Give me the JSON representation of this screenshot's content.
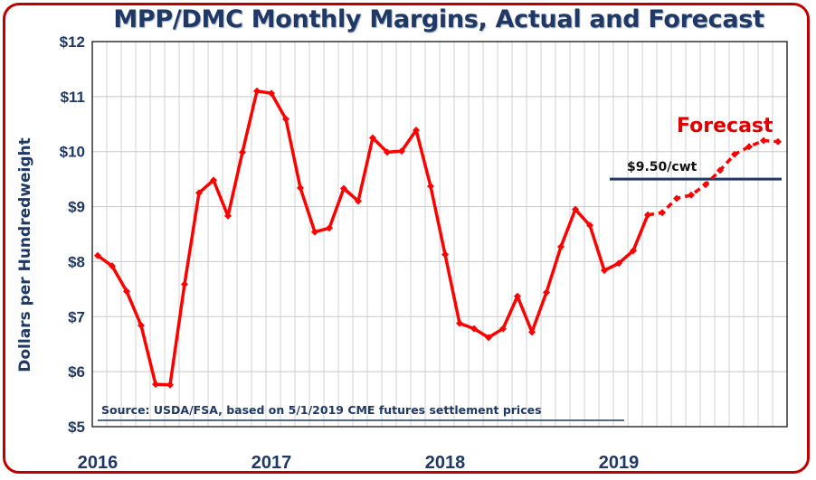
{
  "chart_data": {
    "type": "line",
    "title": "MPP/DMC Monthly Margins, Actual and Forecast",
    "ylabel": "Dollars per Hundredweight",
    "xlabel": "",
    "ylim": [
      5,
      12
    ],
    "y_ticks": [
      "$5",
      "$6",
      "$7",
      "$8",
      "$9",
      "$10",
      "$11",
      "$12"
    ],
    "x_tick_labels": [
      "2016",
      "2017",
      "2018",
      "2019"
    ],
    "grid": true,
    "x": [
      "2016-01",
      "2016-02",
      "2016-03",
      "2016-04",
      "2016-05",
      "2016-06",
      "2016-07",
      "2016-08",
      "2016-09",
      "2016-10",
      "2016-11",
      "2016-12",
      "2017-01",
      "2017-02",
      "2017-03",
      "2017-04",
      "2017-05",
      "2017-06",
      "2017-07",
      "2017-08",
      "2017-09",
      "2017-10",
      "2017-11",
      "2017-12",
      "2018-01",
      "2018-02",
      "2018-03",
      "2018-04",
      "2018-05",
      "2018-06",
      "2018-07",
      "2018-08",
      "2018-09",
      "2018-10",
      "2018-11",
      "2018-12",
      "2019-01",
      "2019-02",
      "2019-03",
      "2019-04",
      "2019-05",
      "2019-06",
      "2019-07",
      "2019-08",
      "2019-09",
      "2019-10",
      "2019-11",
      "2019-12"
    ],
    "series": [
      {
        "color": "#ff0000",
        "actual_values": [
          8.11,
          7.92,
          7.46,
          6.84,
          5.77,
          5.76,
          7.59,
          9.25,
          9.48,
          8.83,
          9.99,
          11.1,
          11.06,
          10.59,
          9.34,
          8.54,
          8.61,
          9.33,
          9.1,
          10.25,
          9.99,
          10.01,
          10.39,
          9.37,
          8.13,
          6.88,
          6.78,
          6.62,
          6.78,
          7.37,
          6.72,
          7.44,
          8.27,
          8.95,
          8.66,
          7.84,
          7.97,
          8.2,
          8.85
        ],
        "forecast_values": [
          8.85,
          8.89,
          9.15,
          9.21,
          9.4,
          9.66,
          9.95,
          10.09,
          10.2,
          10.18
        ]
      }
    ],
    "reference_line": {
      "value": 9.5,
      "label": "$9.50/cwt",
      "color": "#1f3864"
    },
    "annotations": {
      "forecast_label": "Forecast",
      "source_note": "Source:  USDA/FSA, based on 5/1/2019 CME futures settlement prices"
    }
  }
}
